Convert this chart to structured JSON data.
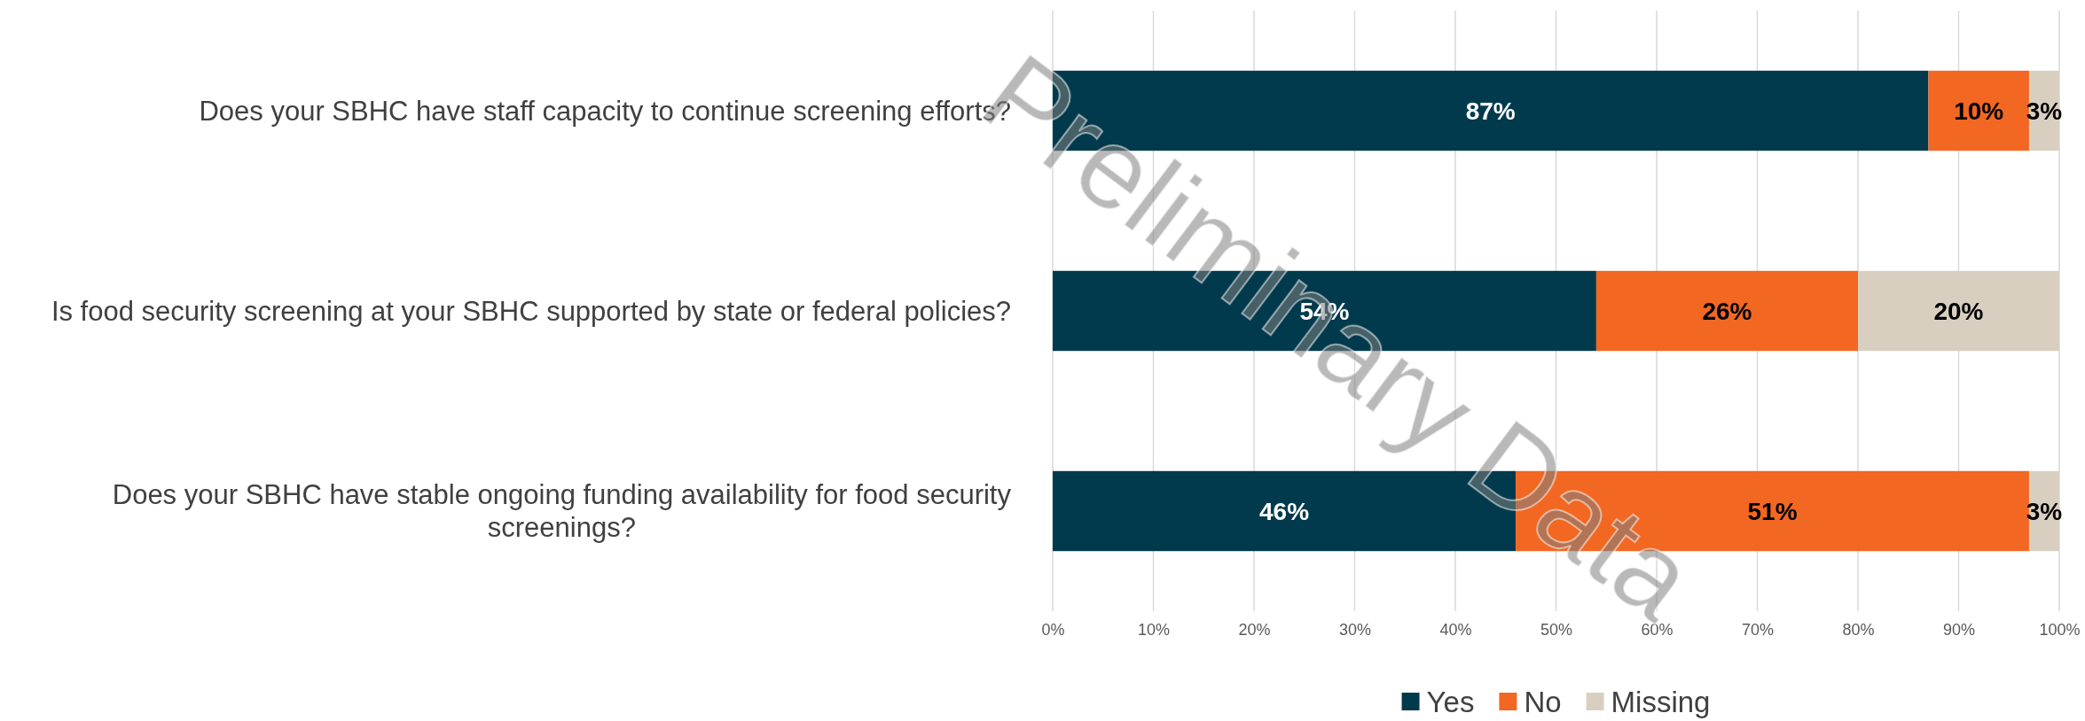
{
  "chart_data": {
    "type": "bar",
    "orientation": "horizontal",
    "stacked": true,
    "categories": [
      "Does your SBHC have staff capacity to continue screening efforts?",
      "Is food security screening at your SBHC supported by state or federal policies?",
      "Does your SBHC have stable ongoing funding availability for food security screenings?"
    ],
    "series": [
      {
        "name": "Yes",
        "color": "#023a4d",
        "values": [
          87,
          54,
          46
        ],
        "value_labels": [
          "87%",
          "54%",
          "46%"
        ]
      },
      {
        "name": "No",
        "color": "#f26722",
        "values": [
          10,
          26,
          51
        ],
        "value_labels": [
          "10%",
          "26%",
          "51%"
        ]
      },
      {
        "name": "Missing",
        "color": "#d9cfc1",
        "values": [
          3,
          20,
          3
        ],
        "value_labels": [
          "3%",
          "20%",
          "3%"
        ]
      }
    ],
    "xlim": [
      0,
      100
    ],
    "xticks": [
      {
        "value": 0,
        "label": "0%"
      },
      {
        "value": 10,
        "label": "10%"
      },
      {
        "value": 20,
        "label": "20%"
      },
      {
        "value": 30,
        "label": "30%"
      },
      {
        "value": 40,
        "label": "40%"
      },
      {
        "value": 50,
        "label": "50%"
      },
      {
        "value": 60,
        "label": "60%"
      },
      {
        "value": 70,
        "label": "70%"
      },
      {
        "value": 80,
        "label": "80%"
      },
      {
        "value": 90,
        "label": "90%"
      },
      {
        "value": 100,
        "label": "100%"
      }
    ],
    "grid": "x",
    "legend": "bottom",
    "annotations": [
      "Preliminary Data"
    ]
  }
}
